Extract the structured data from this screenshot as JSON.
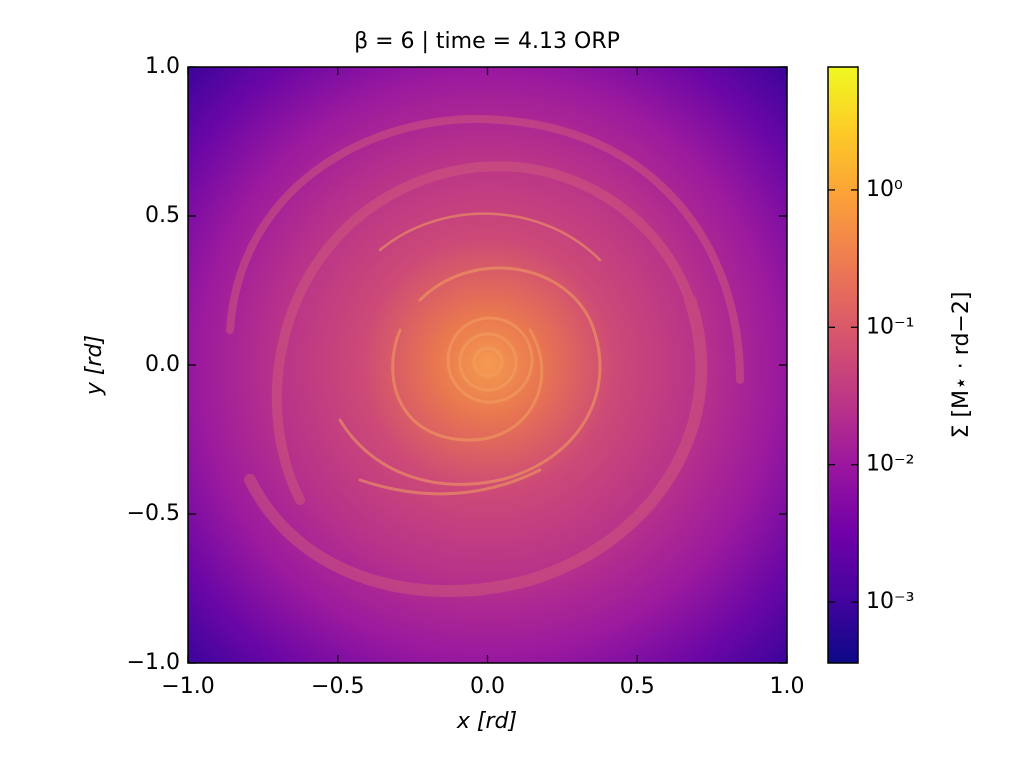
{
  "chart_data": {
    "type": "heatmap",
    "title": "β = 6 | time = 4.13 ORP",
    "x_label": "x [rd]",
    "y_label": "y [rd]",
    "xlim": [
      -1.0,
      1.0
    ],
    "ylim": [
      -1.0,
      1.0
    ],
    "xticks": [
      {
        "value": -1.0,
        "label": "−1.0"
      },
      {
        "value": -0.5,
        "label": "−0.5"
      },
      {
        "value": 0.0,
        "label": "0.0"
      },
      0.5,
      {
        "value": 1.0,
        "label": "1.0"
      }
    ],
    "yticks": [
      {
        "value": -1.0,
        "label": "−1.0"
      },
      {
        "value": -0.5,
        "label": "−0.5"
      },
      {
        "value": 0.0,
        "label": "0.0"
      },
      0.5,
      {
        "value": 1.0,
        "label": "1.0"
      }
    ],
    "colormap": "plasma",
    "colorbar_label": "Σ [M⋆ · rd−2]",
    "colorbar_scale": "log",
    "colorbar_lim": [
      0.00036,
      7.85
    ],
    "colorbar_ticks": [
      {
        "value": 0.001,
        "label": "10⁻³"
      },
      {
        "value": 0.01,
        "label": "10⁻²"
      },
      {
        "value": 0.1,
        "label": "10⁻¹"
      },
      {
        "value": 1,
        "label": "10⁰"
      }
    ]
  }
}
